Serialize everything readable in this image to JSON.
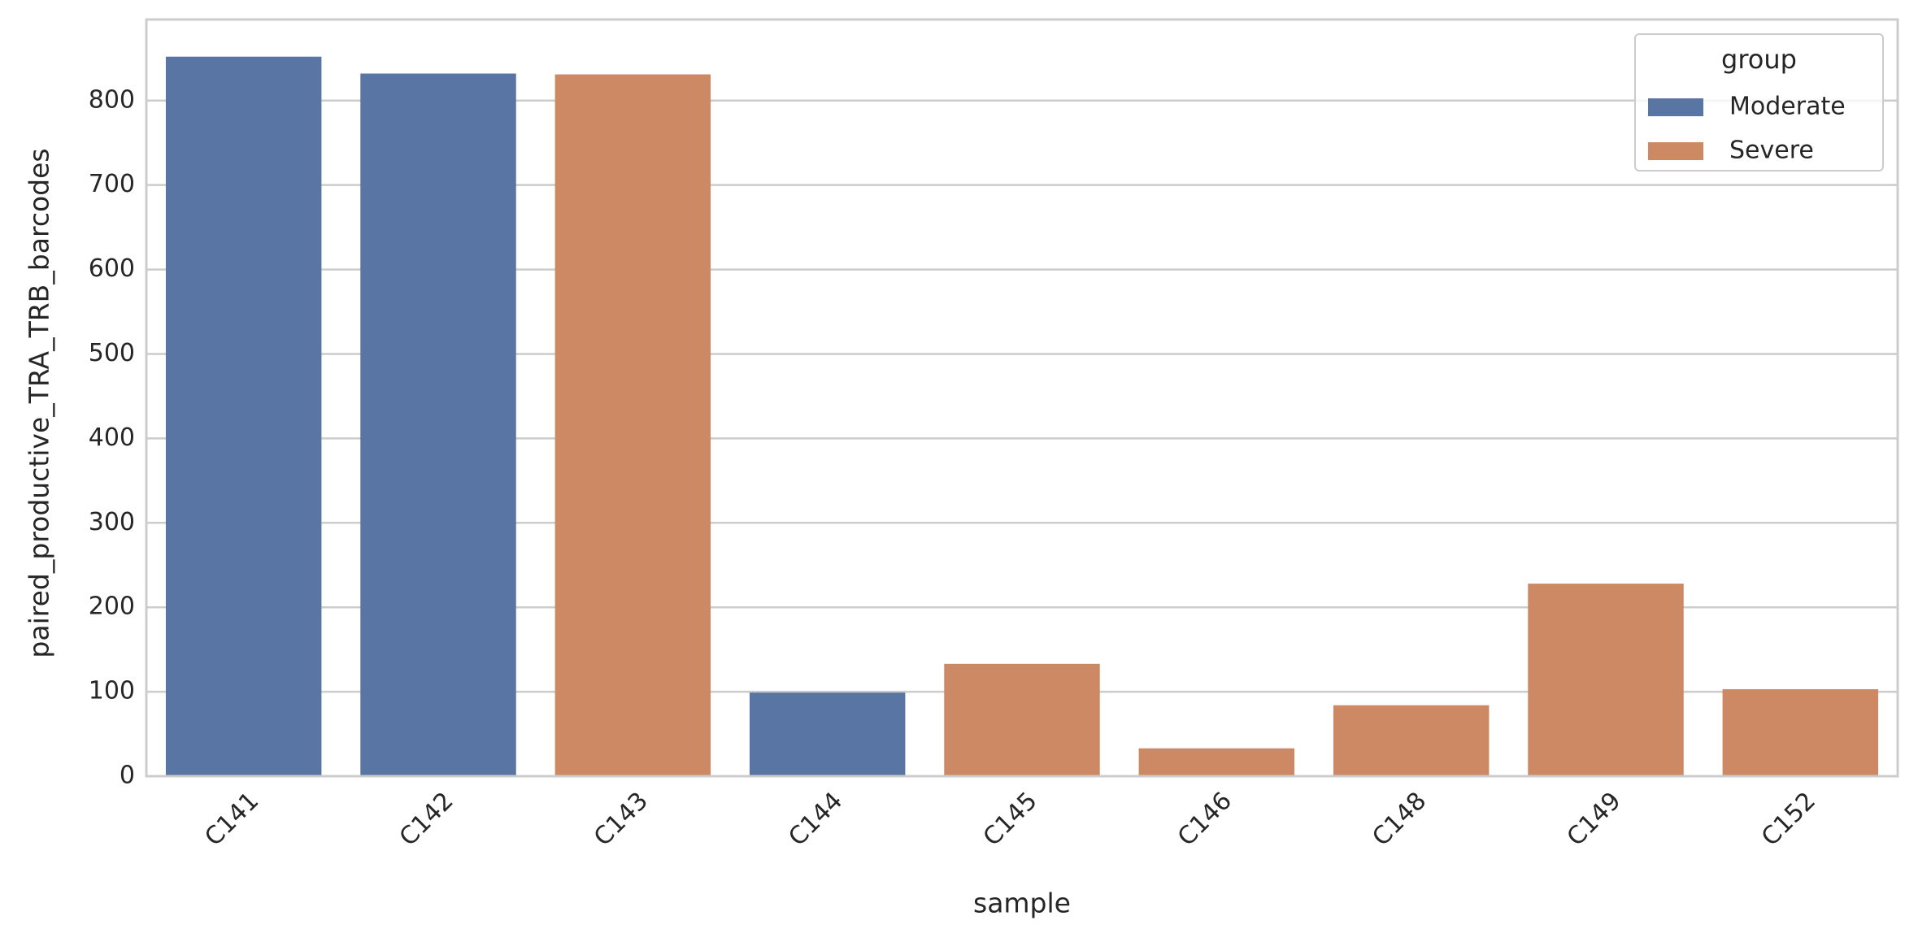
{
  "chart_data": {
    "type": "bar",
    "categories": [
      "C141",
      "C142",
      "C143",
      "C144",
      "C145",
      "C146",
      "C148",
      "C149",
      "C152"
    ],
    "series": [
      {
        "name": "Moderate",
        "color": "#5975a4",
        "values": [
          852,
          832,
          null,
          99,
          null,
          null,
          null,
          null,
          null
        ]
      },
      {
        "name": "Severe",
        "color": "#cc8963",
        "values": [
          null,
          null,
          831,
          null,
          133,
          33,
          84,
          228,
          103
        ]
      }
    ],
    "x_label": "sample",
    "y_label": "paired_productive_TRA_TRB_barcodes",
    "legend_title": "group",
    "legend": "upper right",
    "ylim": [
      0,
      896
    ],
    "yticks": [
      0,
      100,
      200,
      300,
      400,
      500,
      600,
      700,
      800
    ],
    "grid": true
  }
}
